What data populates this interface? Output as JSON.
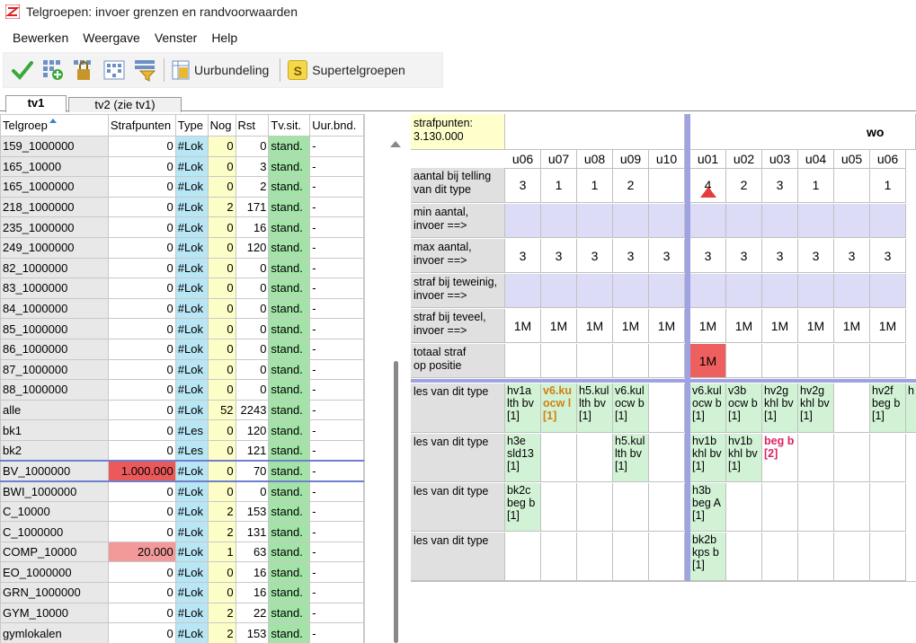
{
  "window": {
    "title": "Telgroepen: invoer grenzen en randvoorwaarden"
  },
  "menu": [
    "Bewerken",
    "Weergave",
    "Venster",
    "Help"
  ],
  "toolbar": {
    "icons": [
      "check-icon",
      "add-grid-icon",
      "lock-grid-icon",
      "dotted-grid-icon",
      "filter-grid-icon"
    ],
    "uurbundeling_label": "Uurbundeling",
    "supertelgroepen_label": "Supertelgroepen",
    "supertelgroepen_letter": "S"
  },
  "tabs": [
    "tv1",
    "tv2 (zie tv1)"
  ],
  "left": {
    "headers": [
      "Telgroep",
      "Strafpunten",
      "Type",
      "Nog",
      "Rst",
      "Tv.sit.",
      "Uur.bnd."
    ],
    "rows": [
      [
        "159_1000000",
        "0",
        "#Lok",
        "0",
        "0",
        "stand.",
        "-"
      ],
      [
        "165_10000",
        "0",
        "#Lok",
        "0",
        "3",
        "stand.",
        "-"
      ],
      [
        "165_1000000",
        "0",
        "#Lok",
        "0",
        "2",
        "stand.",
        "-"
      ],
      [
        "218_1000000",
        "0",
        "#Lok",
        "2",
        "171",
        "stand.",
        "-"
      ],
      [
        "235_1000000",
        "0",
        "#Lok",
        "0",
        "16",
        "stand.",
        "-"
      ],
      [
        "249_1000000",
        "0",
        "#Lok",
        "0",
        "120",
        "stand.",
        "-"
      ],
      [
        "82_1000000",
        "0",
        "#Lok",
        "0",
        "0",
        "stand.",
        "-"
      ],
      [
        "83_1000000",
        "0",
        "#Lok",
        "0",
        "0",
        "stand.",
        "-"
      ],
      [
        "84_1000000",
        "0",
        "#Lok",
        "0",
        "0",
        "stand.",
        "-"
      ],
      [
        "85_1000000",
        "0",
        "#Lok",
        "0",
        "0",
        "stand.",
        "-"
      ],
      [
        "86_1000000",
        "0",
        "#Lok",
        "0",
        "0",
        "stand.",
        "-"
      ],
      [
        "87_1000000",
        "0",
        "#Lok",
        "0",
        "0",
        "stand.",
        "-"
      ],
      [
        "88_1000000",
        "0",
        "#Lok",
        "0",
        "0",
        "stand.",
        "-"
      ],
      [
        "alle",
        "0",
        "#Lok",
        "52",
        "2243",
        "stand.",
        "-"
      ],
      [
        "bk1",
        "0",
        "#Les",
        "0",
        "120",
        "stand.",
        "-"
      ],
      [
        "bk2",
        "0",
        "#Les",
        "0",
        "121",
        "stand.",
        "-"
      ],
      [
        "BV_1000000",
        "1.000.000",
        "#Lok",
        "0",
        "70",
        "stand.",
        "-"
      ],
      [
        "BWI_1000000",
        "0",
        "#Lok",
        "0",
        "0",
        "stand.",
        "-"
      ],
      [
        "C_10000",
        "0",
        "#Lok",
        "2",
        "153",
        "stand.",
        "-"
      ],
      [
        "C_1000000",
        "0",
        "#Lok",
        "2",
        "131",
        "stand.",
        "-"
      ],
      [
        "COMP_10000",
        "20.000",
        "#Lok",
        "1",
        "63",
        "stand.",
        "-"
      ],
      [
        "EO_1000000",
        "0",
        "#Lok",
        "0",
        "16",
        "stand.",
        "-"
      ],
      [
        "GRN_1000000",
        "0",
        "#Lok",
        "0",
        "16",
        "stand.",
        "-"
      ],
      [
        "GYM_10000",
        "0",
        "#Lok",
        "2",
        "22",
        "stand.",
        "-"
      ],
      [
        "gymlokalen",
        "0",
        "#Lok",
        "2",
        "153",
        "stand.",
        "-"
      ]
    ],
    "selected_row": 16,
    "highlight_colors": {
      "BV_1000000": "#ea5a5a",
      "COMP_10000": "#f29a9a"
    }
  },
  "right": {
    "strafpunten_label": "strafpunten:",
    "strafpunten_value": "3.130.000",
    "day": "wo",
    "cols": [
      "u06",
      "u07",
      "u08",
      "u09",
      "u10",
      "u01",
      "u02",
      "u03",
      "u04",
      "u05",
      "u06"
    ],
    "row_labels": [
      "aantal bij telling\nvan dit type",
      "min aantal,\ninvoer ==>",
      "max aantal,\ninvoer ==>",
      "straf bij teweinig,\ninvoer ==>",
      "straf bij teveel,\ninvoer ==>",
      "totaal straf\nop positie",
      "les van dit type",
      "les van dit type",
      "les van dit type",
      "les van dit type"
    ],
    "aantal": [
      "3",
      "1",
      "1",
      "2",
      "",
      "4",
      "2",
      "3",
      "1",
      "",
      "1"
    ],
    "max": [
      "3",
      "3",
      "3",
      "3",
      "3",
      "3",
      "3",
      "3",
      "3",
      "3",
      "3"
    ],
    "teveel": [
      "1M",
      "1M",
      "1M",
      "1M",
      "1M",
      "1M",
      "1M",
      "1M",
      "1M",
      "1M",
      "1M"
    ],
    "totaal": [
      "",
      "",
      "",
      "",
      "",
      "1M",
      "",
      "",
      "",
      "",
      ""
    ],
    "les1": [
      "hv1a\nlth bv\n[1]",
      "v6.ku\nocw l\n[1]",
      "h5.kul\nlth bv\n[1]",
      "v6.kul\nocw b\n[1]",
      "",
      "v6.kul\nocw b\n[1]",
      "v3b\nocw b\n[1]",
      "hv2g\nkhl bv\n[1]",
      "hv2g\nkhl bv\n[1]",
      "",
      "hv2f\nbeg b\n[1]"
    ],
    "les2": [
      "h3e\nsld13\n[1]",
      "",
      "",
      "h5.kul\nlth bv\n[1]",
      "",
      "hv1b\nkhl bv\n[1]",
      "hv1b\nkhl bv\n[1]",
      "beg b\n[2]",
      "",
      "",
      ""
    ],
    "les3": [
      "bk2c\nbeg b\n[1]",
      "",
      "",
      "",
      "",
      "h3b\nbeg A\n[1]",
      "",
      "",
      "",
      "",
      ""
    ],
    "les4": [
      "",
      "",
      "",
      "",
      "",
      "bk2b\nkps b\n[1]",
      "",
      "",
      "",
      "",
      ""
    ],
    "extra_col_fragment": "h",
    "colors": {
      "total_red": "#ee5f5f",
      "warn_triangle": "#e53c3c",
      "lavender": "#dcdcf7",
      "divider": "#9fa3e3",
      "les_green": "#d2f2d6",
      "orange_text": "#d08010",
      "magenta_text": "#e02060"
    }
  }
}
